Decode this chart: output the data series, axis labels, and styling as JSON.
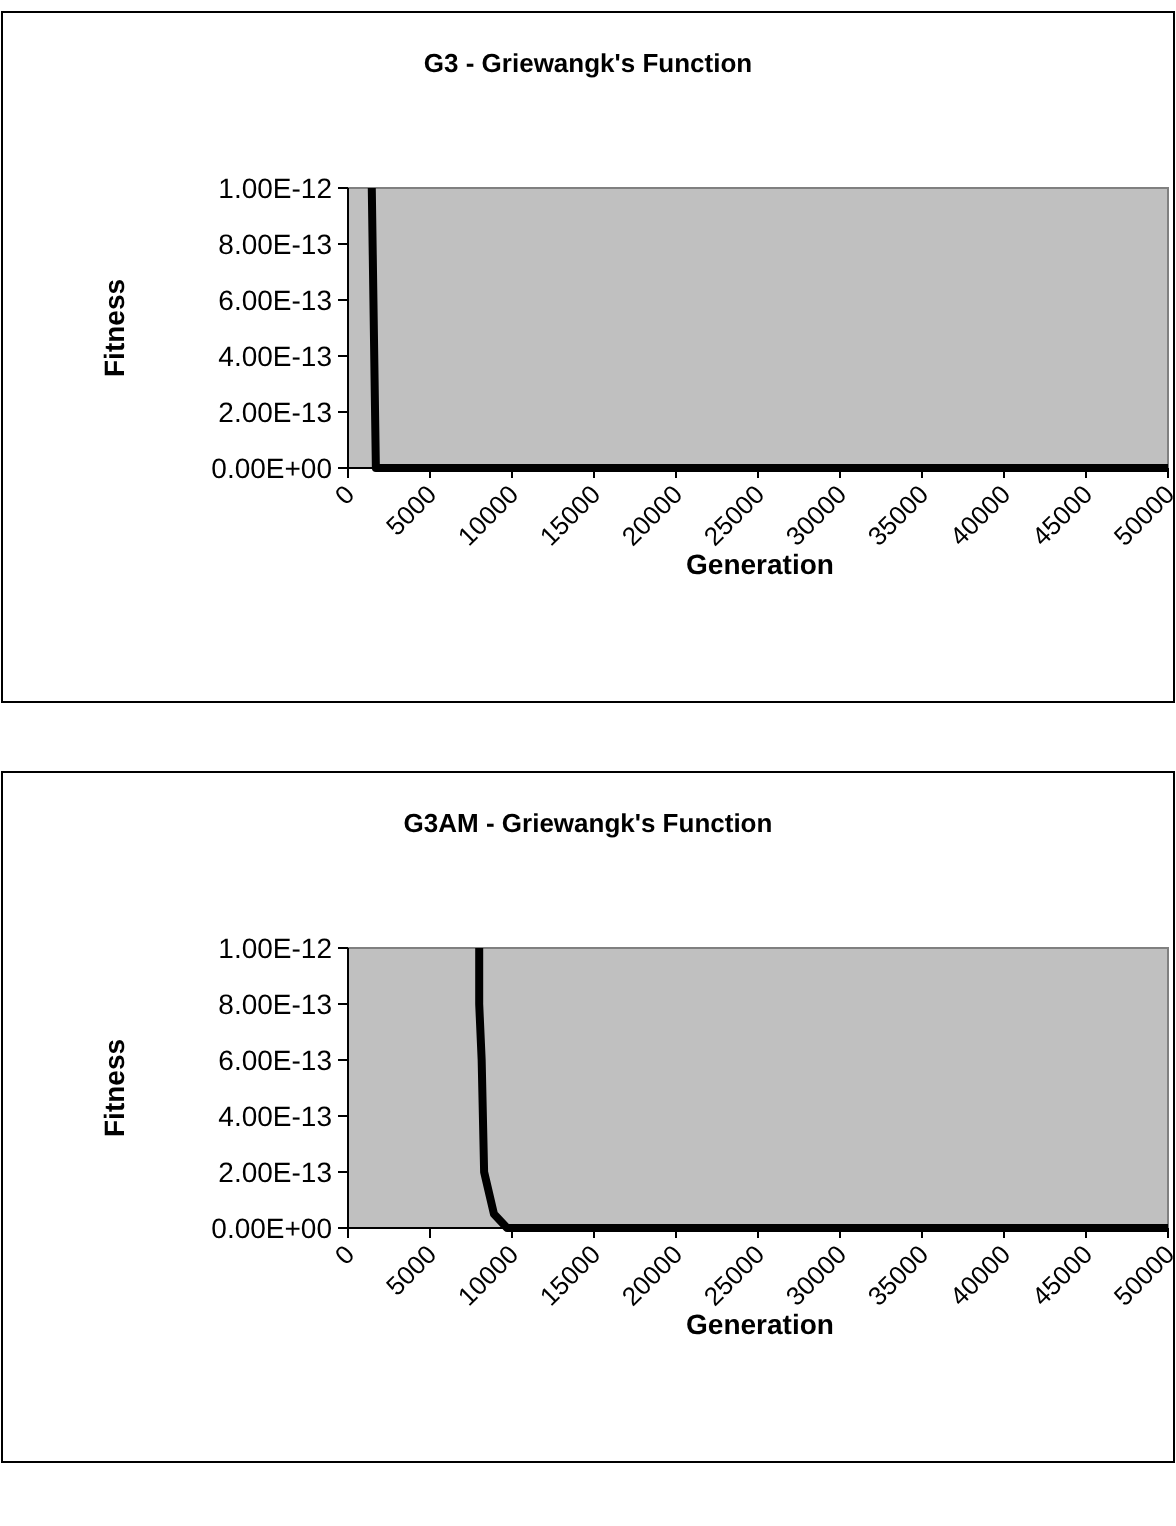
{
  "chart_data": [
    {
      "type": "line",
      "title": "G3 - Griewangk's Function",
      "xlabel": "Generation",
      "ylabel": "Fitness",
      "xlim": [
        0,
        50000
      ],
      "xticks": [
        0,
        5000,
        10000,
        15000,
        20000,
        25000,
        30000,
        35000,
        40000,
        45000,
        50000
      ],
      "ylim": [
        0,
        1e-12
      ],
      "yticks": [
        {
          "value": 0,
          "label": "0.00E+00"
        },
        {
          "value": 2e-13,
          "label": "2.00E-13"
        },
        {
          "value": 4e-13,
          "label": "4.00E-13"
        },
        {
          "value": 6e-13,
          "label": "6.00E-13"
        },
        {
          "value": 8e-13,
          "label": "8.00E-13"
        },
        {
          "value": 1e-12,
          "label": "1.00E-12"
        }
      ],
      "grid": false,
      "marker": "none",
      "line_style": "solid",
      "series": [
        {
          "color": "#000000",
          "x": [
            1450,
            1700,
            5000,
            50000
          ],
          "values": [
            1e-12,
            0,
            0,
            0
          ]
        }
      ]
    },
    {
      "type": "line",
      "title": "G3AM - Griewangk's Function",
      "xlabel": "Generation",
      "ylabel": "Fitness",
      "xlim": [
        0,
        50000
      ],
      "xticks": [
        0,
        5000,
        10000,
        15000,
        20000,
        25000,
        30000,
        35000,
        40000,
        45000,
        50000
      ],
      "ylim": [
        0,
        1e-12
      ],
      "yticks": [
        {
          "value": 0,
          "label": "0.00E+00"
        },
        {
          "value": 2e-13,
          "label": "2.00E-13"
        },
        {
          "value": 4e-13,
          "label": "4.00E-13"
        },
        {
          "value": 6e-13,
          "label": "6.00E-13"
        },
        {
          "value": 8e-13,
          "label": "8.00E-13"
        },
        {
          "value": 1e-12,
          "label": "1.00E-12"
        }
      ],
      "grid": false,
      "marker": "none",
      "line_style": "solid",
      "series": [
        {
          "color": "#000000",
          "x": [
            8000,
            8000,
            8150,
            8300,
            8900,
            9700,
            15000,
            50000
          ],
          "values": [
            1e-12,
            8e-13,
            6e-13,
            2e-13,
            5e-14,
            0,
            0,
            0
          ]
        }
      ]
    }
  ]
}
